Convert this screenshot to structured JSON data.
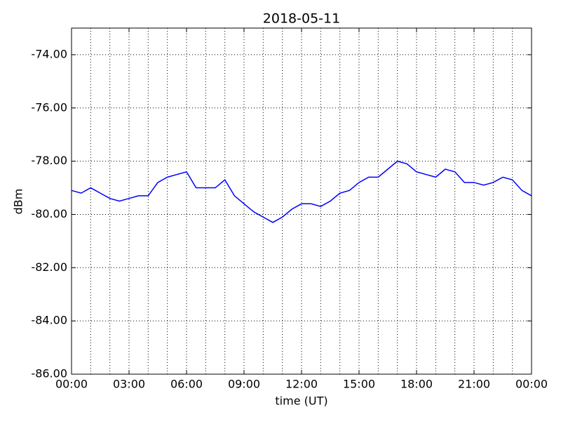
{
  "chart_data": {
    "type": "line",
    "title": "2018-05-11",
    "xlabel": "time (UT)",
    "ylabel": "dBm",
    "x": [
      0,
      0.5,
      1,
      1.5,
      2,
      2.5,
      3,
      3.5,
      4,
      4.5,
      5,
      5.5,
      6,
      6.5,
      7,
      7.5,
      8,
      8.5,
      9,
      9.5,
      10,
      10.5,
      11,
      11.5,
      12,
      12.5,
      13,
      13.5,
      14,
      14.5,
      15,
      15.5,
      16,
      16.5,
      17,
      17.5,
      18,
      18.5,
      19,
      19.5,
      20,
      20.5,
      21,
      21.5,
      22,
      22.5,
      23,
      23.5,
      24
    ],
    "series": [
      {
        "name": "dBm",
        "color": "#0000ff",
        "values": [
          -79.1,
          -79.2,
          -79.0,
          -79.2,
          -79.4,
          -79.5,
          -79.4,
          -79.3,
          -79.3,
          -78.8,
          -78.6,
          -78.5,
          -78.4,
          -79.0,
          -79.0,
          -79.0,
          -78.7,
          -79.3,
          -79.6,
          -79.9,
          -80.1,
          -80.3,
          -80.1,
          -79.8,
          -79.6,
          -79.6,
          -79.7,
          -79.5,
          -79.2,
          -79.1,
          -78.8,
          -78.6,
          -78.6,
          -78.3,
          -78.0,
          -78.1,
          -78.4,
          -78.5,
          -78.6,
          -78.3,
          -78.4,
          -78.8,
          -78.8,
          -78.9,
          -78.8,
          -78.6,
          -78.7,
          -79.1,
          -79.3
        ]
      }
    ],
    "xlim": [
      0,
      24
    ],
    "xticks": [
      {
        "value": 0,
        "label": "00:00"
      },
      {
        "value": 3,
        "label": "03:00"
      },
      {
        "value": 6,
        "label": "06:00"
      },
      {
        "value": 9,
        "label": "09:00"
      },
      {
        "value": 12,
        "label": "12:00"
      },
      {
        "value": 15,
        "label": "15:00"
      },
      {
        "value": 18,
        "label": "18:00"
      },
      {
        "value": 21,
        "label": "21:00"
      },
      {
        "value": 24,
        "label": "00:00"
      }
    ],
    "xminorticks": [
      1,
      2,
      4,
      5,
      7,
      8,
      10,
      11,
      13,
      14,
      16,
      17,
      19,
      20,
      22,
      23
    ],
    "ylim": [
      -86,
      -73
    ],
    "yticks": [
      {
        "value": -86,
        "label": "-86.00"
      },
      {
        "value": -84,
        "label": "-84.00"
      },
      {
        "value": -82,
        "label": "-82.00"
      },
      {
        "value": -80,
        "label": "-80.00"
      },
      {
        "value": -78,
        "label": "-78.00"
      },
      {
        "value": -76,
        "label": "-76.00"
      },
      {
        "value": -74,
        "label": "-74.00"
      }
    ],
    "grid": true
  }
}
